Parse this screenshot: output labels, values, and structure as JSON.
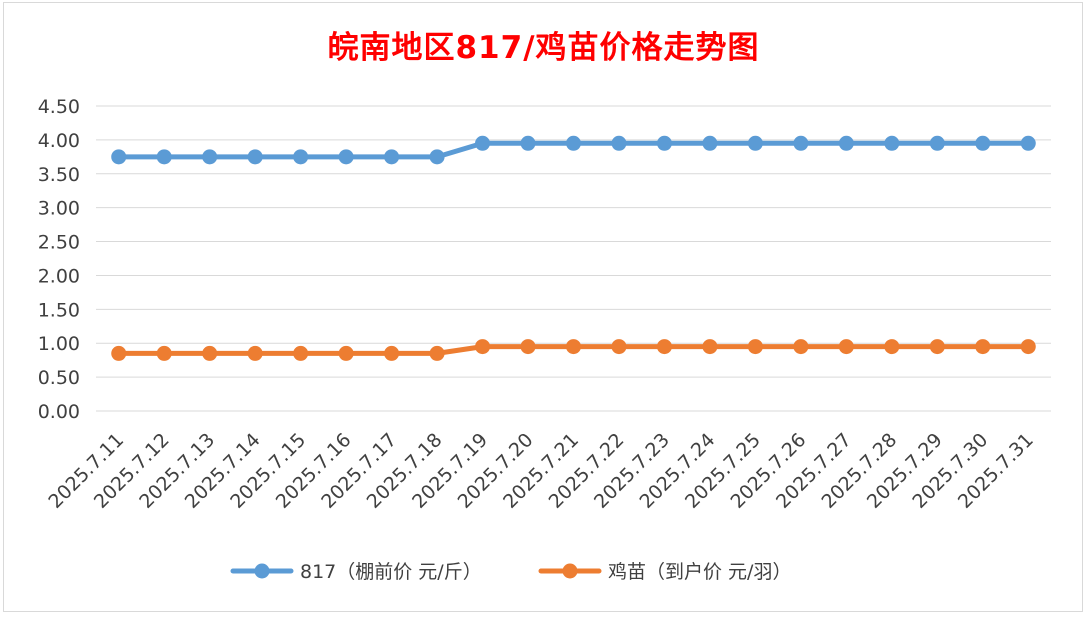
{
  "chart_data": {
    "type": "line",
    "title": "皖南地区817/鸡苗价格走势图",
    "categories": [
      "2025.7.11",
      "2025.7.12",
      "2025.7.13",
      "2025.7.14",
      "2025.7.15",
      "2025.7.16",
      "2025.7.17",
      "2025.7.18",
      "2025.7.19",
      "2025.7.20",
      "2025.7.21",
      "2025.7.22",
      "2025.7.23",
      "2025.7.24",
      "2025.7.25",
      "2025.7.26",
      "2025.7.27",
      "2025.7.28",
      "2025.7.29",
      "2025.7.30",
      "2025.7.31"
    ],
    "series": [
      {
        "name": "817（棚前价 元/斤）",
        "color": "#5b9bd5",
        "values": [
          3.75,
          3.75,
          3.75,
          3.75,
          3.75,
          3.75,
          3.75,
          3.75,
          3.95,
          3.95,
          3.95,
          3.95,
          3.95,
          3.95,
          3.95,
          3.95,
          3.95,
          3.95,
          3.95,
          3.95,
          3.95
        ]
      },
      {
        "name": "鸡苗（到户价 元/羽）",
        "color": "#ed7d31",
        "values": [
          0.85,
          0.85,
          0.85,
          0.85,
          0.85,
          0.85,
          0.85,
          0.85,
          0.95,
          0.95,
          0.95,
          0.95,
          0.95,
          0.95,
          0.95,
          0.95,
          0.95,
          0.95,
          0.95,
          0.95,
          0.95
        ]
      }
    ],
    "ylim": [
      0,
      4.5
    ],
    "yticks": [
      "0.00",
      "0.50",
      "1.00",
      "1.50",
      "2.00",
      "2.50",
      "3.00",
      "3.50",
      "4.00",
      "4.50"
    ],
    "grid": true,
    "legend": "bottom"
  }
}
